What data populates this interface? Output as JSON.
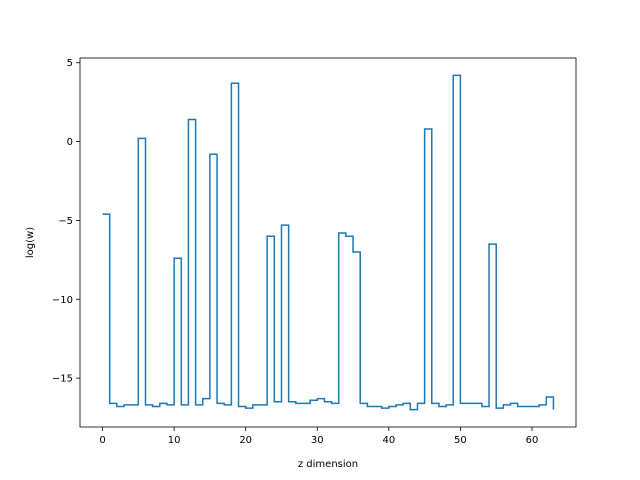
{
  "chart_data": {
    "type": "line",
    "drawstyle": "steps-post",
    "title": "",
    "xlabel": "z dimension",
    "ylabel": "log(w)",
    "xlim": [
      -3.15,
      66.15
    ],
    "ylim": [
      -18.1,
      5.3
    ],
    "xticks": [
      0,
      10,
      20,
      30,
      40,
      50,
      60
    ],
    "yticks": [
      -15,
      -10,
      -5,
      0,
      5
    ],
    "ytick_labels": [
      "−15",
      "−10",
      "−5",
      "0",
      "5"
    ],
    "grid": false,
    "legend": "none",
    "series": [
      {
        "color": "#1f77b4",
        "x": [
          0,
          1,
          2,
          3,
          4,
          5,
          6,
          7,
          8,
          9,
          10,
          11,
          12,
          13,
          14,
          15,
          16,
          17,
          18,
          19,
          20,
          21,
          22,
          23,
          24,
          25,
          26,
          27,
          28,
          29,
          30,
          31,
          32,
          33,
          34,
          35,
          36,
          37,
          38,
          39,
          40,
          41,
          42,
          43,
          44,
          45,
          46,
          47,
          48,
          49,
          50,
          51,
          52,
          53,
          54,
          55,
          56,
          57,
          58,
          59,
          60,
          61,
          62,
          63
        ],
        "values": [
          -4.6,
          -16.6,
          -16.8,
          -16.7,
          -16.7,
          0.2,
          -16.7,
          -16.8,
          -16.6,
          -16.7,
          -7.4,
          -16.7,
          1.4,
          -16.7,
          -16.3,
          -0.8,
          -16.6,
          -16.7,
          3.7,
          -16.8,
          -16.9,
          -16.7,
          -16.7,
          -6.0,
          -16.5,
          -5.3,
          -16.5,
          -16.6,
          -16.6,
          -16.4,
          -16.3,
          -16.5,
          -16.6,
          -5.8,
          -6.0,
          -7.0,
          -16.6,
          -16.8,
          -16.8,
          -16.9,
          -16.8,
          -16.7,
          -16.6,
          -17.0,
          -16.6,
          0.8,
          -16.6,
          -16.8,
          -16.7,
          4.2,
          -16.6,
          -16.6,
          -16.6,
          -16.8,
          -6.5,
          -16.9,
          -16.7,
          -16.6,
          -16.8,
          -16.8,
          -16.8,
          -16.7,
          -16.2,
          -17.0
        ]
      }
    ]
  }
}
